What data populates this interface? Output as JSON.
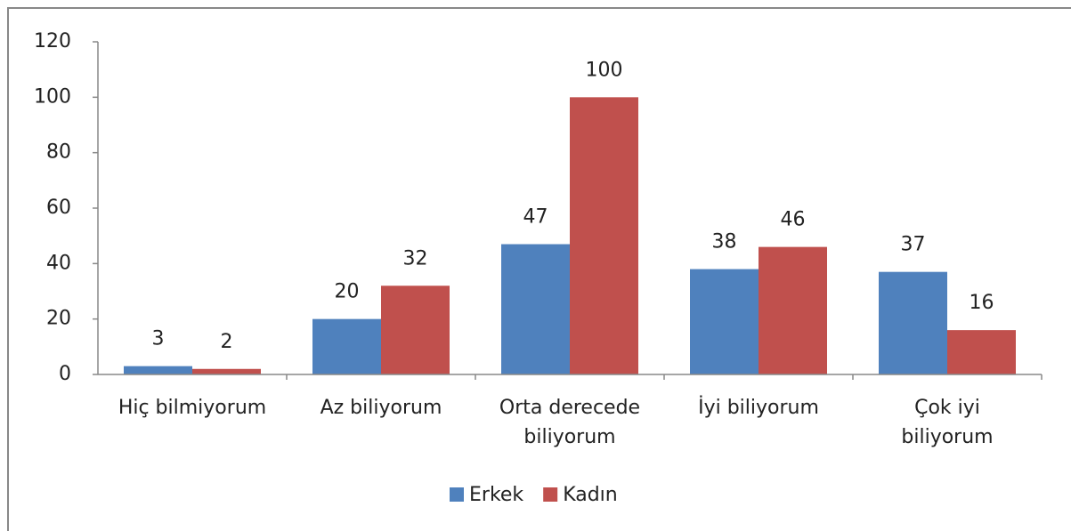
{
  "chart_data": {
    "type": "bar",
    "categories": [
      "Hiç bilmiyorum",
      "Az biliyorum",
      "Orta derecede\nbiliyorum",
      "İyi biliyorum",
      "Çok iyi\nbiliyorum"
    ],
    "series": [
      {
        "name": "Erkek",
        "color": "#4f81bd",
        "values": [
          3,
          20,
          47,
          38,
          37
        ]
      },
      {
        "name": "Kadın",
        "color": "#c0504d",
        "values": [
          2,
          32,
          100,
          46,
          16
        ]
      }
    ],
    "ylim": [
      0,
      120
    ],
    "yticks": [
      0,
      20,
      40,
      60,
      80,
      100,
      120
    ],
    "legend": "bottom",
    "data_labels": true
  }
}
